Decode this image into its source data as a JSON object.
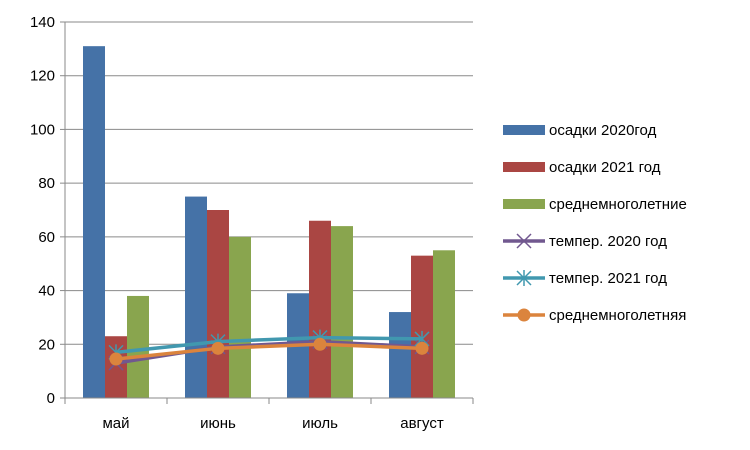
{
  "chart_data": {
    "type": "bar",
    "categories": [
      "май",
      "июнь",
      "июль",
      "август"
    ],
    "ylim": [
      0,
      140
    ],
    "yticks": [
      0,
      20,
      40,
      60,
      80,
      100,
      120,
      140
    ],
    "grid": true,
    "legend_position": "right",
    "bar_series": [
      {
        "name": "осадки 2020год",
        "color": "#4572A7",
        "values": [
          131,
          75,
          39,
          32
        ]
      },
      {
        "name": "осадки 2021 год",
        "color": "#AA4643",
        "values": [
          23,
          70,
          66,
          53
        ]
      },
      {
        "name": "среднемноголетние",
        "color": "#89A54E",
        "values": [
          38,
          60,
          64,
          55
        ]
      }
    ],
    "line_series": [
      {
        "name": "темпер.  2020 год",
        "color": "#71588F",
        "marker": "x",
        "values": [
          13,
          19,
          21,
          19
        ]
      },
      {
        "name": "темпер.  2021 год",
        "color": "#4198AF",
        "marker": "star",
        "values": [
          17,
          21,
          22.5,
          22
        ]
      },
      {
        "name": "среднемноголетняя",
        "color": "#DB843D",
        "marker": "circle",
        "values": [
          14.5,
          18.5,
          20,
          18.5
        ]
      }
    ]
  }
}
